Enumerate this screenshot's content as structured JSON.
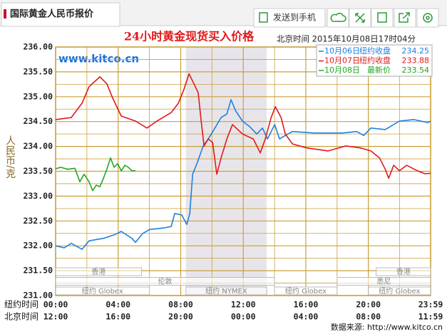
{
  "header": {
    "tab": "国际黄金人民币报价",
    "send": "发送到手机"
  },
  "chart_data": {
    "type": "line",
    "title": "24小时黄金现货买入价格",
    "subtitle": "北京时间  2015年10月08日17时04分",
    "watermark": "www.kitco.cn",
    "ylabel": "人民币/克",
    "x_row_labels": [
      "纽约时间",
      "北京时间"
    ],
    "source": "数据来源: http://www.kitco.cn",
    "xlim": [
      0,
      23.98
    ],
    "ylim": [
      231,
      236
    ],
    "grid": true,
    "yticks": [
      {
        "value": 231,
        "label": "231.00"
      },
      {
        "value": 231.5,
        "label": "231.50"
      },
      {
        "value": 232,
        "label": "232.00"
      },
      {
        "value": 232.5,
        "label": "232.50"
      },
      {
        "value": 233,
        "label": "233.00"
      },
      {
        "value": 233.5,
        "label": "233.50"
      },
      {
        "value": 234,
        "label": "234.00"
      },
      {
        "value": 234.5,
        "label": "234.50"
      },
      {
        "value": 235,
        "label": "235.00"
      },
      {
        "value": 235.5,
        "label": "235.50"
      },
      {
        "value": 236,
        "label": "236.00"
      }
    ],
    "xticks": [
      {
        "value": 0,
        "label": "00:00"
      },
      {
        "value": 4,
        "label": "04:00"
      },
      {
        "value": 8,
        "label": "08:00"
      },
      {
        "value": 12,
        "label": "12:00"
      },
      {
        "value": 16,
        "label": "16:00"
      },
      {
        "value": 20,
        "label": "20:00"
      },
      {
        "value": 23.98,
        "label": "23:59"
      }
    ],
    "x2ticks": [
      {
        "value": 0,
        "label": "12:00"
      },
      {
        "value": 4,
        "label": "16:00"
      },
      {
        "value": 8,
        "label": "20:00"
      },
      {
        "value": 12,
        "label": "00:00"
      },
      {
        "value": 16,
        "label": "04:00"
      },
      {
        "value": 20,
        "label": "08:00"
      },
      {
        "value": 23.98,
        "label": "11:59"
      }
    ],
    "highlight_x": [
      8.33,
      13.5
    ],
    "sessions": [
      {
        "label": "香港",
        "start": 0,
        "end": 5.5,
        "row": 0
      },
      {
        "label": "香港",
        "start": 20.5,
        "end": 23.98,
        "row": 0
      },
      {
        "label": "伦敦",
        "start": 0,
        "end": 14,
        "row": 1
      },
      {
        "label": "悉尼",
        "start": 18,
        "end": 23.98,
        "row": 1
      },
      {
        "label": "纽约 Globex",
        "start": 0,
        "end": 6,
        "row": 2
      },
      {
        "label": "纽约 NYMEX",
        "start": 8.33,
        "end": 13.5,
        "row": 2
      },
      {
        "label": "纽约 Globex",
        "start": 14,
        "end": 18,
        "row": 2
      },
      {
        "label": "纽约 Globex",
        "start": 20,
        "end": 23.98,
        "row": 2
      }
    ],
    "series": [
      {
        "name": "10月06日",
        "color": "#1e7fe0",
        "legend_note": "纽约收盘",
        "legend_value": 234.25,
        "x": [
          0,
          0.55,
          1.0,
          1.69,
          2.14,
          3.06,
          3.74,
          4.2,
          4.88,
          5.11,
          5.57,
          6.02,
          6.93,
          7.39,
          7.62,
          8.07,
          8.39,
          8.58,
          8.76,
          9.03,
          9.44,
          9.76,
          10.13,
          10.58,
          10.95,
          11.22,
          11.5,
          11.95,
          12.41,
          12.86,
          13.23,
          13.55,
          14.01,
          14.32,
          14.69,
          15.15,
          16.51,
          18.34,
          19.25,
          19.71,
          20.16,
          21.08,
          21.99,
          22.9,
          23.81,
          23.98
        ],
        "values": [
          232.0,
          231.96,
          232.05,
          231.93,
          232.1,
          232.15,
          232.22,
          232.29,
          232.15,
          232.07,
          232.25,
          232.33,
          232.36,
          232.39,
          232.65,
          232.62,
          232.43,
          232.65,
          233.44,
          233.65,
          234.01,
          234.15,
          234.34,
          234.58,
          234.65,
          234.94,
          234.72,
          234.51,
          234.4,
          234.25,
          234.37,
          234.15,
          234.44,
          234.15,
          234.22,
          234.3,
          234.27,
          234.27,
          234.3,
          234.22,
          234.37,
          234.34,
          234.51,
          234.54,
          234.48,
          234.51
        ]
      },
      {
        "name": "10月07日",
        "color": "#e0191b",
        "legend_note": "纽约收盘",
        "legend_value": 233.88,
        "x": [
          0,
          1.0,
          1.69,
          2.14,
          2.83,
          3.28,
          3.65,
          4.2,
          5.11,
          5.84,
          6.48,
          7.39,
          7.85,
          8.21,
          8.53,
          8.85,
          9.12,
          9.31,
          9.49,
          9.76,
          10.04,
          10.31,
          10.58,
          10.95,
          11.31,
          11.95,
          12.64,
          13.09,
          13.41,
          13.78,
          14.05,
          14.42,
          14.69,
          15.15,
          16.06,
          17.43,
          18.57,
          19.48,
          20.16,
          20.71,
          21.08,
          21.3,
          21.62,
          21.99,
          22.45,
          23.13,
          23.63,
          23.98
        ],
        "values": [
          234.54,
          234.58,
          234.87,
          235.2,
          235.4,
          235.26,
          234.97,
          234.61,
          234.51,
          234.37,
          234.51,
          234.68,
          234.87,
          235.15,
          235.46,
          235.26,
          235.08,
          234.51,
          234.01,
          234.15,
          234.08,
          233.44,
          233.77,
          234.15,
          234.44,
          234.25,
          234.15,
          233.87,
          234.15,
          234.58,
          234.8,
          234.58,
          234.25,
          234.05,
          233.97,
          233.91,
          234.01,
          233.97,
          233.91,
          233.77,
          233.54,
          233.36,
          233.62,
          233.51,
          233.62,
          233.51,
          233.45,
          233.46
        ]
      },
      {
        "name": "10月08日",
        "color": "#22a622",
        "legend_note": "最新价",
        "legend_value": 233.54,
        "x": [
          0,
          0.32,
          0.78,
          1.23,
          1.55,
          1.82,
          2.14,
          2.37,
          2.6,
          2.83,
          3.06,
          3.28,
          3.51,
          3.74,
          3.97,
          4.2,
          4.43,
          4.65,
          4.88,
          5.11
        ],
        "values": [
          233.55,
          233.58,
          233.54,
          233.56,
          233.29,
          233.44,
          233.29,
          233.11,
          233.22,
          233.19,
          233.36,
          233.54,
          233.77,
          233.58,
          233.65,
          233.51,
          233.62,
          233.58,
          233.51,
          233.51
        ]
      }
    ]
  }
}
